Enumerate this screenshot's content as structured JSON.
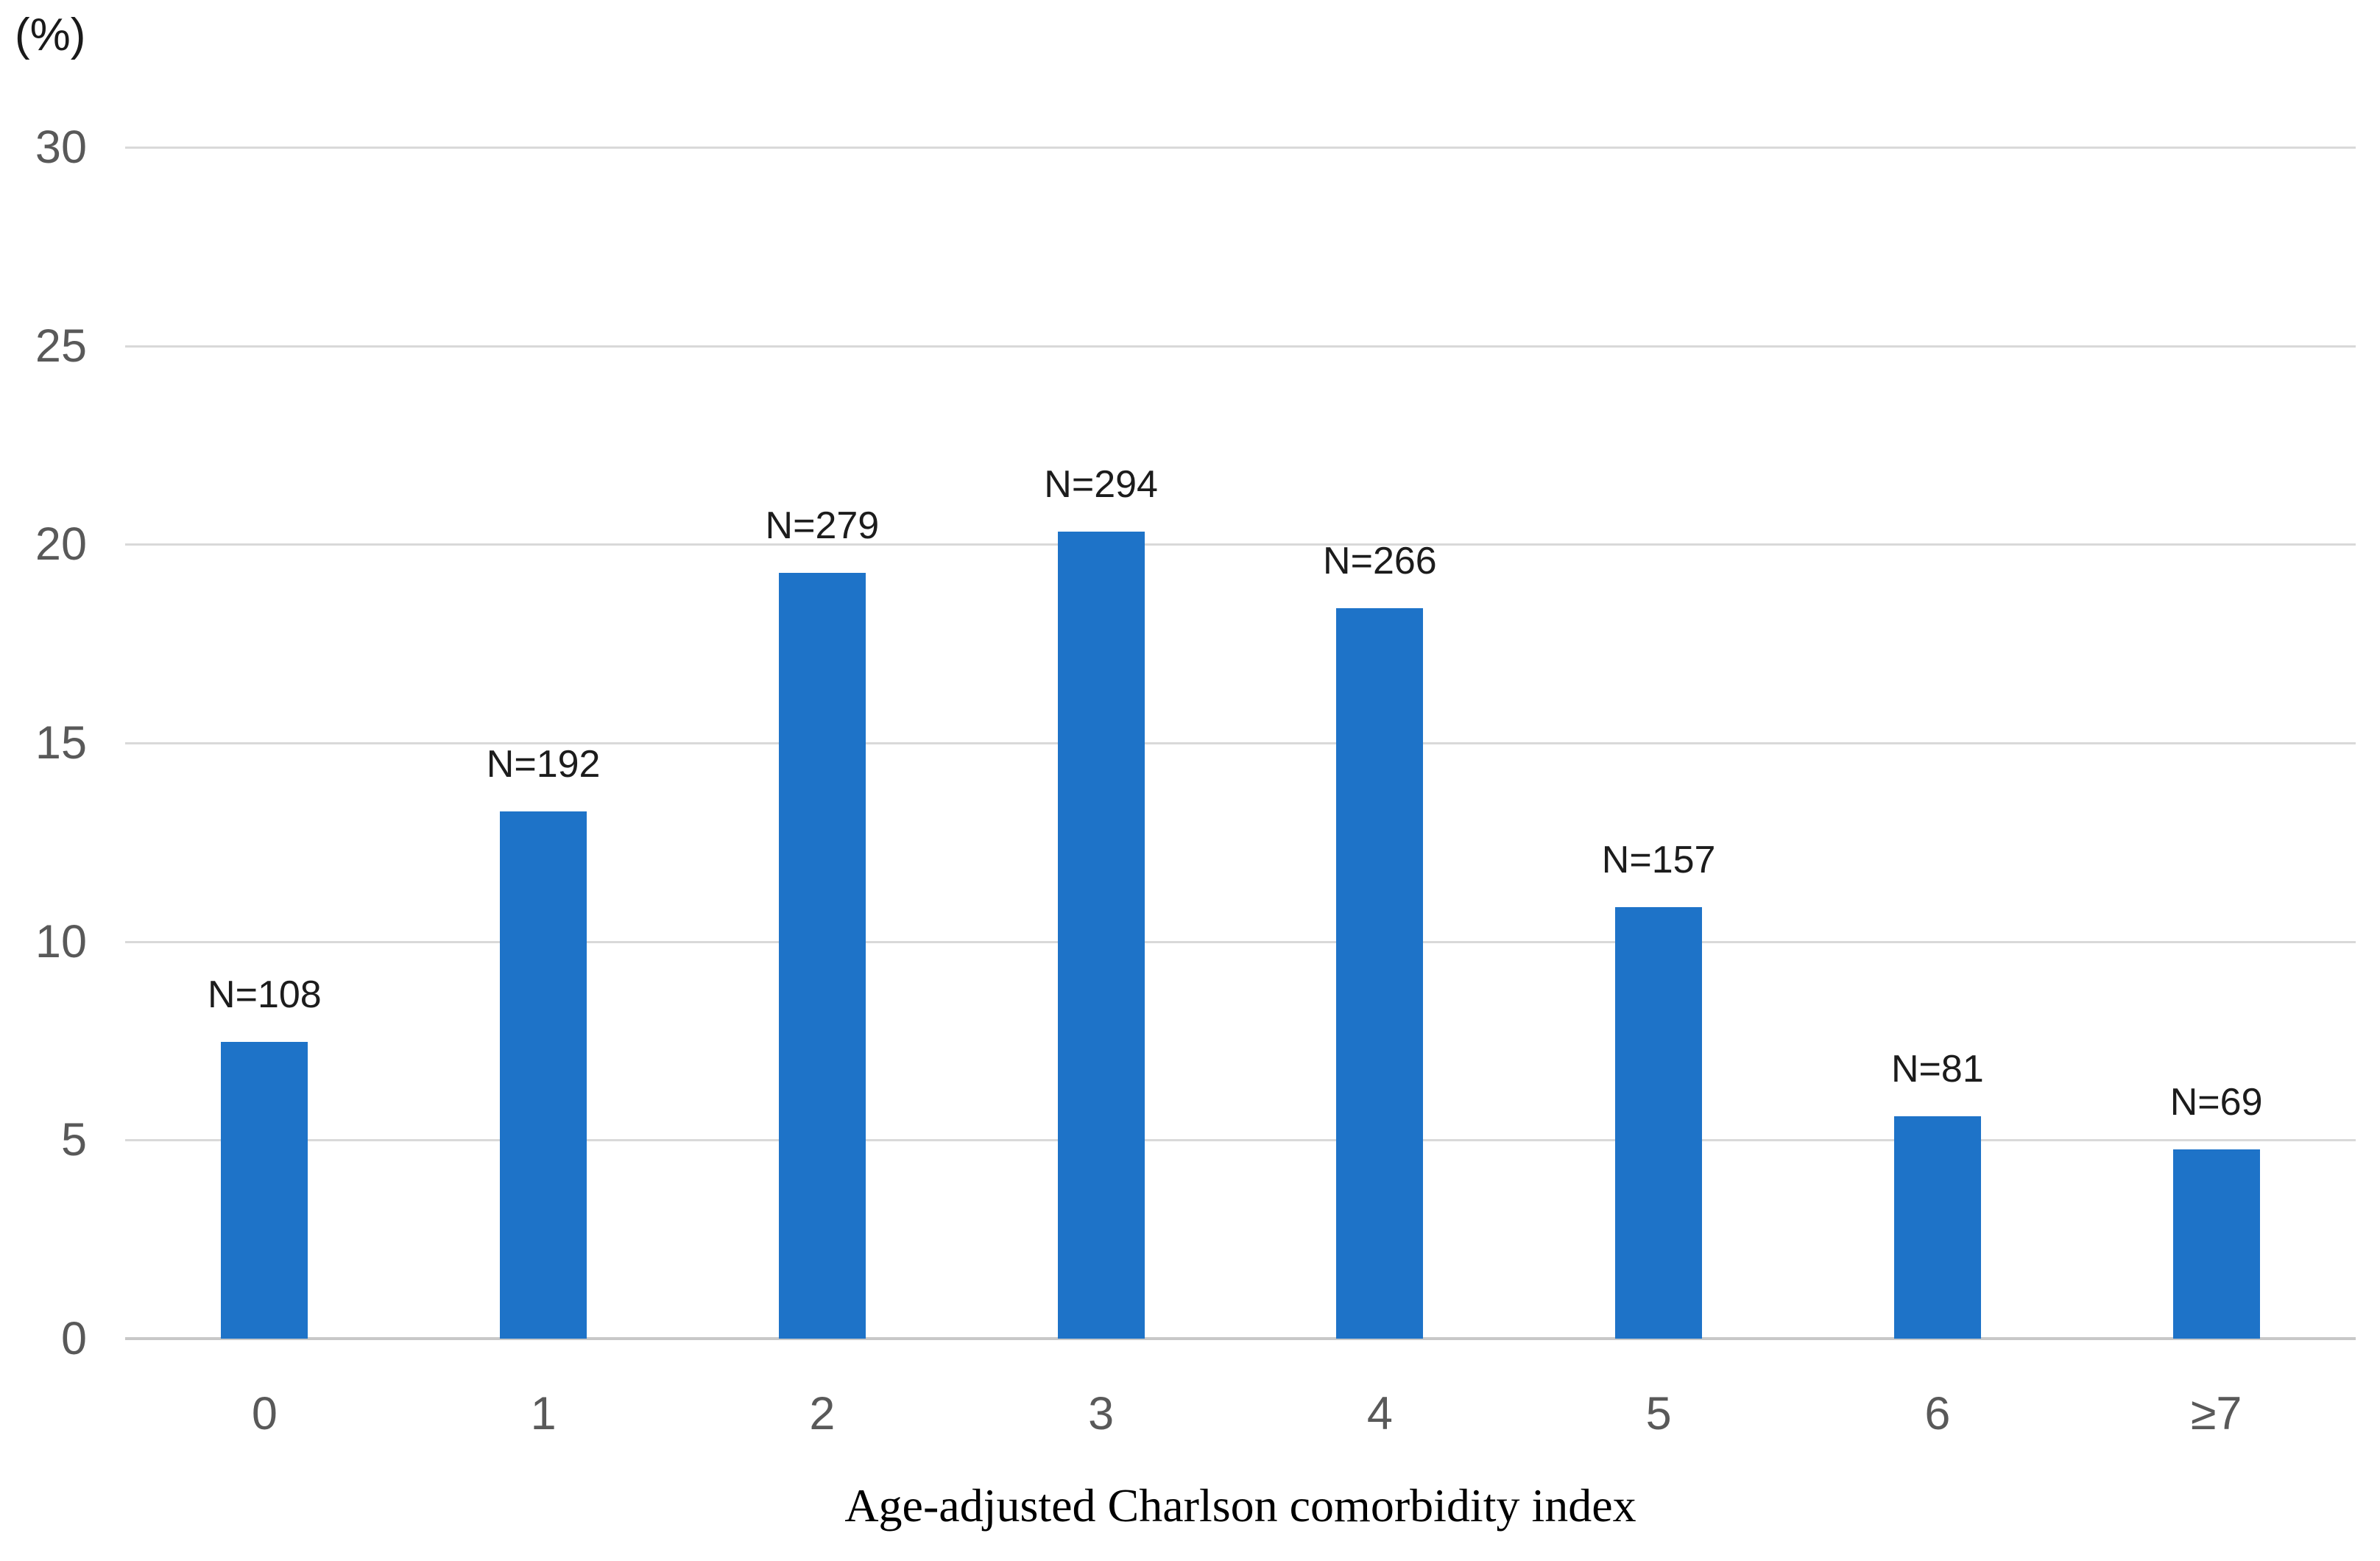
{
  "chart_data": {
    "type": "bar",
    "title": "",
    "xlabel": "Age-adjusted Charlson comorbidity index",
    "ylabel": "(%)",
    "categories": [
      "0",
      "1",
      "2",
      "3",
      "4",
      "5",
      "6",
      "≥7"
    ],
    "counts": [
      108,
      192,
      279,
      294,
      266,
      157,
      81,
      69
    ],
    "values_pct": [
      7.47,
      13.28,
      19.29,
      20.33,
      18.4,
      10.86,
      5.6,
      4.77
    ],
    "bar_labels": [
      "N=108",
      "N=192",
      "N=279",
      "N=294",
      "N=266",
      "N=157",
      "N=81",
      "N=69"
    ],
    "ylim": [
      0,
      30
    ],
    "yticks": [
      0,
      5,
      10,
      15,
      20,
      25,
      30
    ],
    "grid": true,
    "legend_position": "none",
    "bar_color": "#1e73c8",
    "gridline_color": "#d9d9d9",
    "axis_line_color": "#c8c8c8",
    "tick_label_color": "#595959",
    "data_label_color": "#1c1c1c"
  }
}
